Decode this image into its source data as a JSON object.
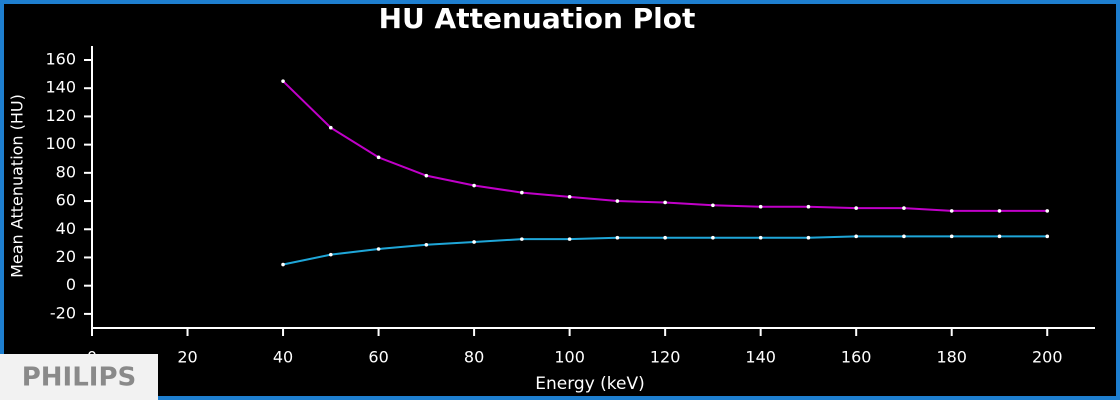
{
  "chart_data": {
    "type": "line",
    "title": "HU Attenuation Plot",
    "x_label": "Energy (keV)",
    "y_label": "Mean Attenuation (HU)",
    "x": [
      40,
      50,
      60,
      70,
      80,
      90,
      100,
      110,
      120,
      130,
      140,
      150,
      160,
      170,
      180,
      190,
      200
    ],
    "series": [
      {
        "color": "#c000c8",
        "values": [
          145,
          112,
          91,
          78,
          71,
          66,
          63,
          60,
          59,
          57,
          56,
          56,
          55,
          55,
          53,
          53,
          53
        ]
      },
      {
        "color": "#1fa6d8",
        "values": [
          15,
          22,
          26,
          29,
          31,
          33,
          33,
          34,
          34,
          34,
          34,
          34,
          35,
          35,
          35,
          35,
          35
        ]
      }
    ],
    "xlim": [
      0,
      210
    ],
    "xticks": [
      0,
      20,
      40,
      60,
      80,
      100,
      120,
      140,
      160,
      180,
      200
    ],
    "ylim": [
      -30,
      160
    ],
    "yticks": [
      -20,
      0,
      20,
      40,
      60,
      80,
      100,
      120,
      140,
      160
    ],
    "grid": false,
    "watermark": "PHILIPS"
  }
}
